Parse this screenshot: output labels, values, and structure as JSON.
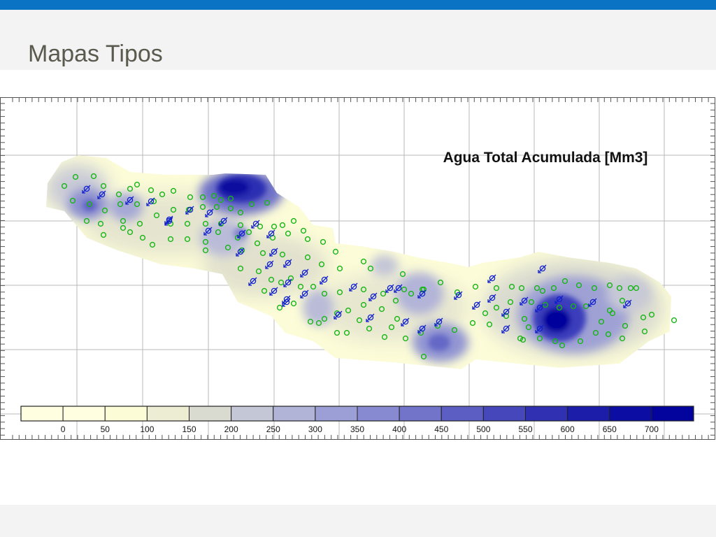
{
  "slide": {
    "title": "Mapas Tipos"
  },
  "colors": {
    "top_bar": "#0a73c4",
    "header_band": "#f3f3f3",
    "title_text": "#5a5a4e",
    "producer_well": "#18b518",
    "injector_well": "#1020cc"
  },
  "map": {
    "title": "Agua Total Acumulada [Mm3]",
    "legend": {
      "labels": [
        "0",
        "50",
        "100",
        "150",
        "200",
        "250",
        "300",
        "350",
        "400",
        "450",
        "500",
        "550",
        "600",
        "650",
        "700"
      ],
      "colors": [
        "#fffee0",
        "#fcfcd6",
        "#ededd3",
        "#dadbd0",
        "#c4c7d6",
        "#b1b3d7",
        "#9c9fd5",
        "#878ad0",
        "#7274ca",
        "#5c5ec4",
        "#4547bb",
        "#2f31b2",
        "#1c1eaa",
        "#0c0ea3",
        "#03049d"
      ]
    },
    "producer_wells": [
      [
        108,
        253
      ],
      [
        134,
        252
      ],
      [
        92,
        266
      ],
      [
        148,
        266
      ],
      [
        170,
        278
      ],
      [
        186,
        270
      ],
      [
        196,
        264
      ],
      [
        216,
        272
      ],
      [
        232,
        278
      ],
      [
        248,
        273
      ],
      [
        272,
        282
      ],
      [
        290,
        282
      ],
      [
        306,
        280
      ],
      [
        316,
        286
      ],
      [
        330,
        284
      ],
      [
        104,
        287
      ],
      [
        128,
        292
      ],
      [
        150,
        301
      ],
      [
        172,
        292
      ],
      [
        196,
        292
      ],
      [
        220,
        288
      ],
      [
        248,
        300
      ],
      [
        270,
        300
      ],
      [
        290,
        296
      ],
      [
        310,
        296
      ],
      [
        330,
        298
      ],
      [
        344,
        304
      ],
      [
        360,
        292
      ],
      [
        382,
        290
      ],
      [
        124,
        316
      ],
      [
        144,
        320
      ],
      [
        176,
        316
      ],
      [
        200,
        320
      ],
      [
        224,
        308
      ],
      [
        244,
        320
      ],
      [
        268,
        320
      ],
      [
        294,
        320
      ],
      [
        316,
        320
      ],
      [
        344,
        322
      ],
      [
        372,
        324
      ],
      [
        392,
        324
      ],
      [
        404,
        322
      ],
      [
        420,
        316
      ],
      [
        148,
        336
      ],
      [
        176,
        326
      ],
      [
        186,
        332
      ],
      [
        204,
        340
      ],
      [
        218,
        350
      ],
      [
        244,
        342
      ],
      [
        268,
        342
      ],
      [
        294,
        346
      ],
      [
        312,
        332
      ],
      [
        340,
        340
      ],
      [
        356,
        332
      ],
      [
        368,
        348
      ],
      [
        390,
        340
      ],
      [
        412,
        334
      ],
      [
        434,
        330
      ],
      [
        440,
        342
      ],
      [
        462,
        346
      ],
      [
        480,
        360
      ],
      [
        294,
        358
      ],
      [
        326,
        354
      ],
      [
        346,
        358
      ],
      [
        376,
        362
      ],
      [
        404,
        364
      ],
      [
        440,
        368
      ],
      [
        460,
        378
      ],
      [
        486,
        384
      ],
      [
        520,
        374
      ],
      [
        530,
        384
      ],
      [
        344,
        384
      ],
      [
        370,
        388
      ],
      [
        388,
        400
      ],
      [
        402,
        404
      ],
      [
        416,
        398
      ],
      [
        430,
        410
      ],
      [
        448,
        410
      ],
      [
        464,
        420
      ],
      [
        486,
        418
      ],
      [
        520,
        414
      ],
      [
        548,
        420
      ],
      [
        576,
        392
      ],
      [
        578,
        414
      ],
      [
        604,
        414
      ],
      [
        630,
        404
      ],
      [
        654,
        418
      ],
      [
        680,
        410
      ],
      [
        710,
        412
      ],
      [
        732,
        410
      ],
      [
        746,
        412
      ],
      [
        768,
        412
      ],
      [
        776,
        416
      ],
      [
        792,
        412
      ],
      [
        808,
        402
      ],
      [
        828,
        408
      ],
      [
        850,
        412
      ],
      [
        872,
        408
      ],
      [
        886,
        412
      ],
      [
        902,
        412
      ],
      [
        910,
        412
      ],
      [
        890,
        430
      ],
      [
        872,
        444
      ],
      [
        876,
        448
      ],
      [
        860,
        460
      ],
      [
        838,
        438
      ],
      [
        820,
        438
      ],
      [
        800,
        440
      ],
      [
        780,
        436
      ],
      [
        760,
        432
      ],
      [
        730,
        432
      ],
      [
        710,
        440
      ],
      [
        694,
        448
      ],
      [
        606,
        414
      ],
      [
        588,
        420
      ],
      [
        566,
        430
      ],
      [
        546,
        442
      ],
      [
        520,
        436
      ],
      [
        498,
        444
      ],
      [
        482,
        448
      ],
      [
        464,
        456
      ],
      [
        444,
        460
      ],
      [
        456,
        462
      ],
      [
        420,
        434
      ],
      [
        400,
        440
      ],
      [
        378,
        416
      ],
      [
        514,
        458
      ],
      [
        528,
        470
      ],
      [
        550,
        482
      ],
      [
        560,
        468
      ],
      [
        568,
        456
      ],
      [
        580,
        484
      ],
      [
        602,
        476
      ],
      [
        626,
        466
      ],
      [
        650,
        472
      ],
      [
        676,
        462
      ],
      [
        700,
        464
      ],
      [
        724,
        452
      ],
      [
        750,
        456
      ],
      [
        756,
        468
      ],
      [
        744,
        484
      ],
      [
        748,
        486
      ],
      [
        772,
        484
      ],
      [
        794,
        488
      ],
      [
        804,
        494
      ],
      [
        830,
        488
      ],
      [
        852,
        476
      ],
      [
        870,
        478
      ],
      [
        894,
        466
      ],
      [
        920,
        454
      ],
      [
        932,
        450
      ],
      [
        964,
        458
      ],
      [
        890,
        484
      ],
      [
        922,
        474
      ],
      [
        606,
        510
      ],
      [
        482,
        476
      ],
      [
        496,
        476
      ]
    ],
    "injector_wells": [
      [
        124,
        270
      ],
      [
        146,
        278
      ],
      [
        186,
        286
      ],
      [
        216,
        288
      ],
      [
        242,
        316
      ],
      [
        272,
        300
      ],
      [
        298,
        330
      ],
      [
        320,
        316
      ],
      [
        346,
        334
      ],
      [
        366,
        320
      ],
      [
        388,
        334
      ],
      [
        392,
        360
      ],
      [
        412,
        376
      ],
      [
        436,
        390
      ],
      [
        464,
        400
      ],
      [
        362,
        402
      ],
      [
        392,
        416
      ],
      [
        412,
        404
      ],
      [
        436,
        420
      ],
      [
        410,
        432
      ],
      [
        506,
        410
      ],
      [
        534,
        424
      ],
      [
        558,
        412
      ],
      [
        570,
        412
      ],
      [
        604,
        420
      ],
      [
        656,
        422
      ],
      [
        682,
        436
      ],
      [
        704,
        398
      ],
      [
        776,
        384
      ],
      [
        704,
        426
      ],
      [
        724,
        446
      ],
      [
        750,
        430
      ],
      [
        772,
        440
      ],
      [
        800,
        428
      ],
      [
        848,
        432
      ],
      [
        898,
        434
      ],
      [
        530,
        454
      ],
      [
        580,
        460
      ],
      [
        604,
        470
      ],
      [
        628,
        460
      ],
      [
        484,
        450
      ],
      [
        772,
        470
      ],
      [
        724,
        470
      ],
      [
        242,
        314
      ],
      [
        300,
        304
      ],
      [
        410,
        428
      ],
      [
        386,
        378
      ],
      [
        344,
        360
      ]
    ]
  }
}
